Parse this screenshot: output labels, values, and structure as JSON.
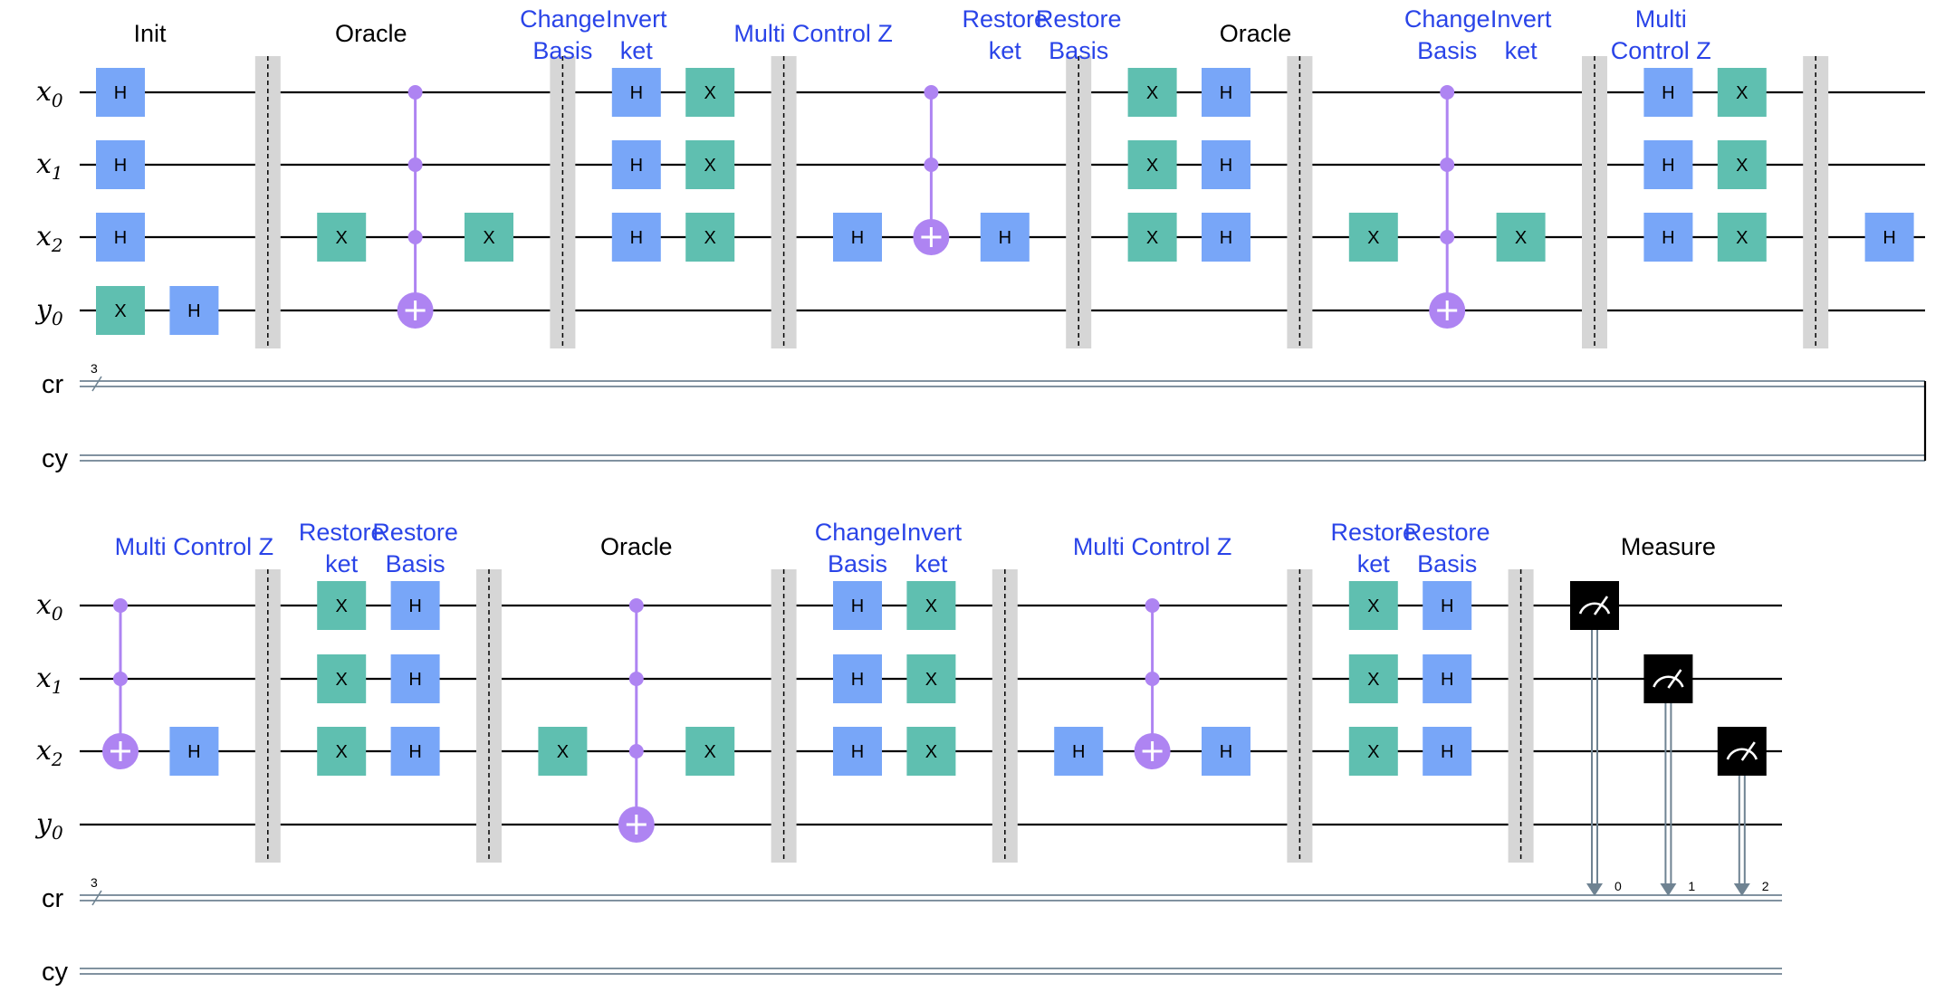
{
  "colors": {
    "h_gate": "#78a6f8",
    "x_gate": "#5fbfb0",
    "control": "#ae84f2",
    "barrier": "#d6d6d6",
    "measure": "#000000",
    "classical": "#6f8392",
    "label_blue": "#2a44e8",
    "label_black": "#000000"
  },
  "registers": [
    {
      "name": "x",
      "index": "0",
      "type": "quantum"
    },
    {
      "name": "x",
      "index": "1",
      "type": "quantum"
    },
    {
      "name": "x",
      "index": "2",
      "type": "quantum"
    },
    {
      "name": "y",
      "index": "0",
      "type": "quantum"
    },
    {
      "name": "cr",
      "index": "",
      "type": "classical",
      "width": "3"
    },
    {
      "name": "cy",
      "index": "",
      "type": "classical"
    }
  ],
  "rows": [
    {
      "sections": [
        {
          "lines": [
            "Init"
          ],
          "color": "black",
          "col": 1.4
        },
        {
          "lines": [
            "Oracle"
          ],
          "color": "black",
          "col": 4.4
        },
        {
          "lines": [
            "Change",
            "Basis"
          ],
          "color": "blue",
          "col": 7
        },
        {
          "lines": [
            "Invert",
            "ket"
          ],
          "color": "blue",
          "col": 8
        },
        {
          "lines": [
            "Multi Control Z"
          ],
          "color": "blue",
          "col": 10.4
        },
        {
          "lines": [
            "Restore",
            "ket"
          ],
          "color": "blue",
          "col": 13
        },
        {
          "lines": [
            "Restore",
            "Basis"
          ],
          "color": "blue",
          "col": 14
        },
        {
          "lines": [
            "Oracle"
          ],
          "color": "black",
          "col": 16.4
        },
        {
          "lines": [
            "Change",
            "Basis"
          ],
          "color": "blue",
          "col": 19
        },
        {
          "lines": [
            "Invert",
            "ket"
          ],
          "color": "blue",
          "col": 20
        },
        {
          "lines": [
            "Multi",
            "Control Z"
          ],
          "color": "blue",
          "col": 21.9
        }
      ],
      "gates": [
        {
          "type": "H",
          "q": 0,
          "col": 1
        },
        {
          "type": "H",
          "q": 1,
          "col": 1
        },
        {
          "type": "H",
          "q": 2,
          "col": 1
        },
        {
          "type": "X",
          "q": 3,
          "col": 1
        },
        {
          "type": "H",
          "q": 3,
          "col": 2
        },
        {
          "type": "X",
          "q": 2,
          "col": 4
        },
        {
          "type": "X",
          "q": 2,
          "col": 6
        },
        {
          "type": "H",
          "q": 0,
          "col": 8
        },
        {
          "type": "H",
          "q": 1,
          "col": 8
        },
        {
          "type": "H",
          "q": 2,
          "col": 8
        },
        {
          "type": "X",
          "q": 0,
          "col": 9
        },
        {
          "type": "X",
          "q": 1,
          "col": 9
        },
        {
          "type": "X",
          "q": 2,
          "col": 9
        },
        {
          "type": "H",
          "q": 2,
          "col": 11
        },
        {
          "type": "H",
          "q": 2,
          "col": 13
        },
        {
          "type": "X",
          "q": 0,
          "col": 15
        },
        {
          "type": "X",
          "q": 1,
          "col": 15
        },
        {
          "type": "X",
          "q": 2,
          "col": 15
        },
        {
          "type": "H",
          "q": 0,
          "col": 16
        },
        {
          "type": "H",
          "q": 1,
          "col": 16
        },
        {
          "type": "H",
          "q": 2,
          "col": 16
        },
        {
          "type": "X",
          "q": 2,
          "col": 18
        },
        {
          "type": "X",
          "q": 2,
          "col": 20
        },
        {
          "type": "H",
          "q": 0,
          "col": 22
        },
        {
          "type": "H",
          "q": 1,
          "col": 22
        },
        {
          "type": "H",
          "q": 2,
          "col": 22
        },
        {
          "type": "X",
          "q": 0,
          "col": 23
        },
        {
          "type": "X",
          "q": 1,
          "col": 23
        },
        {
          "type": "X",
          "q": 2,
          "col": 23
        },
        {
          "type": "H",
          "q": 2,
          "col": 25
        }
      ],
      "multi": [
        {
          "controls": [
            0,
            1,
            2
          ],
          "target": 3,
          "col": 5
        },
        {
          "controls": [
            0,
            1
          ],
          "target": 2,
          "col": 12
        },
        {
          "controls": [
            0,
            1,
            2
          ],
          "target": 3,
          "col": 19
        }
      ],
      "barriers": [
        3,
        7,
        10,
        14,
        17,
        21,
        24
      ],
      "measures": []
    },
    {
      "sections": [
        {
          "lines": [
            "Multi Control Z"
          ],
          "color": "blue",
          "col": 2
        },
        {
          "lines": [
            "Restore",
            "ket"
          ],
          "color": "blue",
          "col": 4
        },
        {
          "lines": [
            "Restore",
            "Basis"
          ],
          "color": "blue",
          "col": 5
        },
        {
          "lines": [
            "Oracle"
          ],
          "color": "black",
          "col": 8
        },
        {
          "lines": [
            "Change",
            "Basis"
          ],
          "color": "blue",
          "col": 11
        },
        {
          "lines": [
            "Invert",
            "ket"
          ],
          "color": "blue",
          "col": 12
        },
        {
          "lines": [
            "Multi Control Z"
          ],
          "color": "blue",
          "col": 15
        },
        {
          "lines": [
            "Restore",
            "ket"
          ],
          "color": "blue",
          "col": 18
        },
        {
          "lines": [
            "Restore",
            "Basis"
          ],
          "color": "blue",
          "col": 19
        },
        {
          "lines": [
            "Measure"
          ],
          "color": "black",
          "col": 22
        }
      ],
      "gates": [
        {
          "type": "H",
          "q": 2,
          "col": 2
        },
        {
          "type": "X",
          "q": 0,
          "col": 4
        },
        {
          "type": "X",
          "q": 1,
          "col": 4
        },
        {
          "type": "X",
          "q": 2,
          "col": 4
        },
        {
          "type": "H",
          "q": 0,
          "col": 5
        },
        {
          "type": "H",
          "q": 1,
          "col": 5
        },
        {
          "type": "H",
          "q": 2,
          "col": 5
        },
        {
          "type": "X",
          "q": 2,
          "col": 7
        },
        {
          "type": "X",
          "q": 2,
          "col": 9
        },
        {
          "type": "H",
          "q": 0,
          "col": 11
        },
        {
          "type": "H",
          "q": 1,
          "col": 11
        },
        {
          "type": "H",
          "q": 2,
          "col": 11
        },
        {
          "type": "X",
          "q": 0,
          "col": 12
        },
        {
          "type": "X",
          "q": 1,
          "col": 12
        },
        {
          "type": "X",
          "q": 2,
          "col": 12
        },
        {
          "type": "H",
          "q": 2,
          "col": 14
        },
        {
          "type": "H",
          "q": 2,
          "col": 16
        },
        {
          "type": "X",
          "q": 0,
          "col": 18
        },
        {
          "type": "X",
          "q": 1,
          "col": 18
        },
        {
          "type": "X",
          "q": 2,
          "col": 18
        },
        {
          "type": "H",
          "q": 0,
          "col": 19
        },
        {
          "type": "H",
          "q": 1,
          "col": 19
        },
        {
          "type": "H",
          "q": 2,
          "col": 19
        }
      ],
      "multi": [
        {
          "controls": [
            0,
            1
          ],
          "target": 2,
          "col": 1
        },
        {
          "controls": [
            0,
            1,
            2
          ],
          "target": 3,
          "col": 8
        },
        {
          "controls": [
            0,
            1
          ],
          "target": 2,
          "col": 15
        }
      ],
      "barriers": [
        3,
        6,
        10,
        13,
        17,
        20
      ],
      "measures": [
        {
          "q": 0,
          "col": 21,
          "bit": "0"
        },
        {
          "q": 1,
          "col": 22,
          "bit": "1"
        },
        {
          "q": 2,
          "col": 23,
          "bit": "2"
        }
      ]
    }
  ]
}
